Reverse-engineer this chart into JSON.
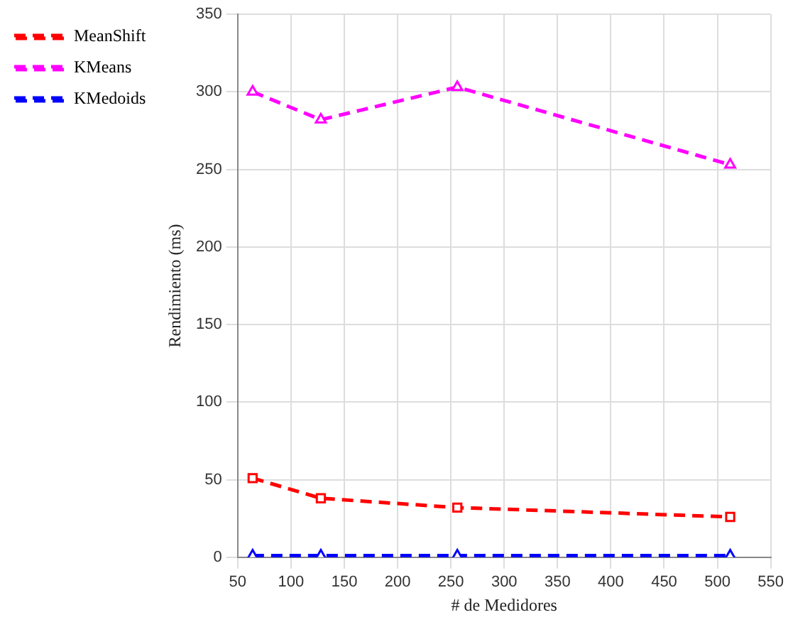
{
  "chart_data": {
    "type": "line",
    "xlabel": "# de Medidores",
    "ylabel": "Rendimiento (ms)",
    "x": [
      64,
      128,
      256,
      512
    ],
    "series": [
      {
        "name": "MeanShift",
        "color": "#ff0000",
        "values": [
          51,
          38,
          32,
          26
        ],
        "marker": "square"
      },
      {
        "name": "KMeans",
        "color": "#ff00ff",
        "values": [
          300,
          282,
          303,
          253
        ],
        "marker": "triangle"
      },
      {
        "name": "KMedoids",
        "color": "#0000ff",
        "values": [
          1,
          1,
          1,
          1
        ],
        "marker": "triangle"
      }
    ],
    "xlim": [
      50,
      550
    ],
    "xticks": [
      50,
      100,
      150,
      200,
      250,
      300,
      350,
      400,
      450,
      500,
      550
    ],
    "ylim": [
      0,
      350
    ],
    "yticks": [
      0,
      50,
      100,
      150,
      200,
      250,
      300,
      350
    ],
    "grid": true,
    "legend": "top left",
    "line_style": "dashed"
  }
}
